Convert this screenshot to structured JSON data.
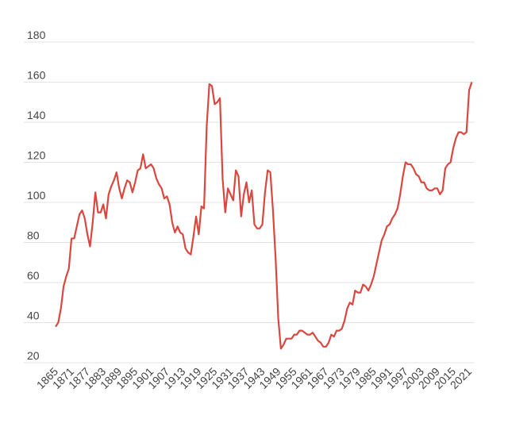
{
  "chart_data": {
    "type": "line",
    "color": "#d9473f",
    "grid": true,
    "x": [
      1865,
      1866,
      1867,
      1868,
      1869,
      1870,
      1871,
      1872,
      1873,
      1874,
      1875,
      1876,
      1877,
      1878,
      1879,
      1880,
      1881,
      1882,
      1883,
      1884,
      1885,
      1886,
      1887,
      1888,
      1889,
      1890,
      1891,
      1892,
      1893,
      1894,
      1895,
      1896,
      1897,
      1898,
      1899,
      1900,
      1901,
      1902,
      1903,
      1904,
      1905,
      1906,
      1907,
      1908,
      1909,
      1910,
      1911,
      1912,
      1913,
      1914,
      1915,
      1916,
      1917,
      1918,
      1919,
      1920,
      1921,
      1922,
      1923,
      1924,
      1925,
      1926,
      1927,
      1928,
      1929,
      1930,
      1931,
      1932,
      1933,
      1934,
      1935,
      1936,
      1937,
      1938,
      1939,
      1940,
      1941,
      1942,
      1943,
      1944,
      1945,
      1946,
      1947,
      1948,
      1949,
      1950,
      1951,
      1952,
      1953,
      1954,
      1955,
      1956,
      1957,
      1958,
      1959,
      1960,
      1961,
      1962,
      1963,
      1964,
      1965,
      1966,
      1967,
      1968,
      1969,
      1970,
      1971,
      1972,
      1973,
      1974,
      1975,
      1976,
      1977,
      1978,
      1979,
      1980,
      1981,
      1982,
      1983,
      1984,
      1985,
      1986,
      1987,
      1988,
      1989,
      1990,
      1991,
      1992,
      1993,
      1994,
      1995,
      1996,
      1997,
      1998,
      1999,
      2000,
      2001,
      2002,
      2003,
      2004,
      2005,
      2006,
      2007,
      2008,
      2009,
      2010,
      2011,
      2012,
      2013,
      2014,
      2015,
      2016,
      2017,
      2018,
      2019,
      2020,
      2021,
      2022
    ],
    "values": [
      38,
      40,
      47,
      58,
      63,
      67,
      82,
      82,
      88,
      94,
      96,
      92,
      84,
      78,
      90,
      105,
      95,
      95,
      99,
      92,
      104,
      108,
      111,
      115,
      107,
      102,
      107,
      111,
      110,
      105,
      110,
      116,
      117,
      124,
      117,
      118,
      119,
      117,
      112,
      109,
      107,
      102,
      103,
      99,
      90,
      85,
      88,
      85,
      84,
      77,
      75,
      74,
      83,
      93,
      84,
      98,
      97,
      138,
      159,
      158,
      149,
      150,
      152,
      112,
      95,
      107,
      104,
      101,
      116,
      113,
      93,
      104,
      110,
      100,
      106,
      89,
      87,
      87,
      89,
      105,
      116,
      115,
      96,
      72,
      42,
      27,
      29,
      32,
      32,
      32,
      34,
      34,
      36,
      36,
      35,
      34,
      34,
      35,
      33,
      31,
      30,
      28,
      28,
      30,
      34,
      33,
      36,
      36,
      37,
      41,
      47,
      50,
      49,
      56,
      55,
      55,
      59,
      58,
      56,
      59,
      63,
      69,
      75,
      81,
      84,
      88,
      89,
      92,
      94,
      97,
      104,
      113,
      120,
      119,
      119,
      117,
      114,
      113,
      110,
      110,
      107,
      106,
      106,
      107,
      107,
      104,
      106,
      117,
      119,
      120,
      127,
      132,
      135,
      135,
      134,
      135,
      156,
      160
    ],
    "xlim": [
      1864,
      2023
    ],
    "xticks": [
      1865,
      1871,
      1877,
      1883,
      1889,
      1895,
      1901,
      1907,
      1913,
      1919,
      1925,
      1931,
      1937,
      1943,
      1949,
      1955,
      1961,
      1967,
      1973,
      1979,
      1985,
      1991,
      1997,
      2003,
      2009,
      2015,
      2021
    ],
    "ylim": [
      20,
      180
    ],
    "yticks": [
      20,
      40,
      60,
      80,
      100,
      120,
      140,
      160,
      180
    ]
  }
}
